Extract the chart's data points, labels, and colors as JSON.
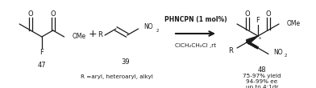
{
  "background_color": "#ffffff",
  "figsize": [
    3.92,
    1.1
  ],
  "dpi": 100,
  "compound47_label": "47",
  "compound39_label": "39",
  "compound48_label": "48",
  "reagent_line1": "PHNCPN (1 mol%)",
  "reagent_line2": "ClCH₂CH₂Cl ,rt",
  "R_label": "R =aryl, heteroaryl, alkyl",
  "yield_text": "75-97% yield",
  "ee_text": "94-99% ee",
  "dr_text": "up to 4:1dr",
  "text_color": "#1a1a1a"
}
